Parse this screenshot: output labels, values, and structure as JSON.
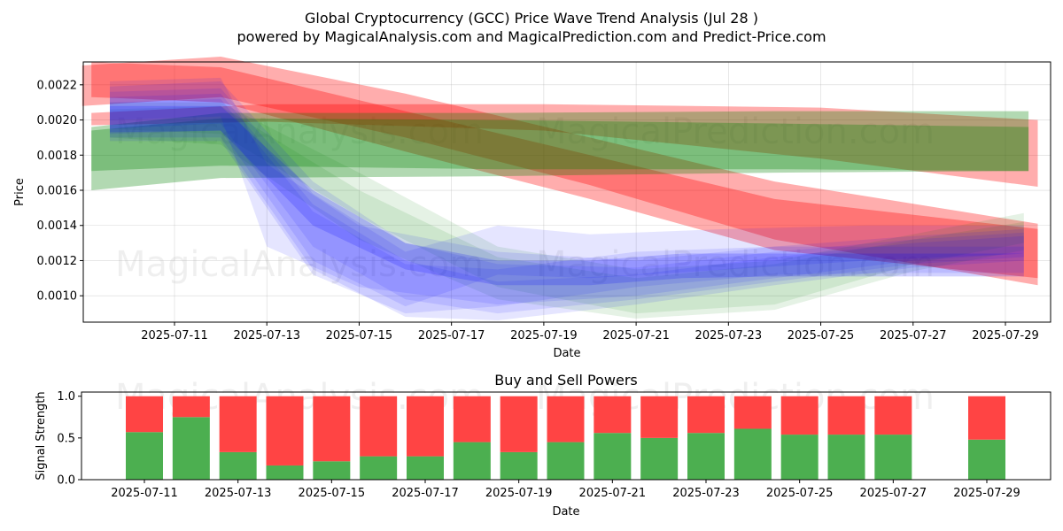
{
  "title": "Global Cryptocurrency (GCC) Price Wave Trend Analysis (Jul 28 )",
  "subtitle": "powered by MagicalAnalysis.com and MagicalPrediction.com and Predict-Price.com",
  "watermarks": [
    "MagicalAnalysis.com",
    "MagicalPrediction.com"
  ],
  "colors": {
    "red": "#ff0000",
    "green": "#008000",
    "blue": "#0000ff",
    "buy": "#4caf50",
    "sell": "#ff4444",
    "grid": "#b0b0b0"
  },
  "chart_data": [
    {
      "type": "area",
      "title": "",
      "xlabel": "Date",
      "ylabel": "Price",
      "x_range": [
        "2025-07-09",
        "2025-07-30"
      ],
      "ylim": [
        0.00085,
        0.00233
      ],
      "x_ticks": [
        "2025-07-11",
        "2025-07-13",
        "2025-07-15",
        "2025-07-17",
        "2025-07-19",
        "2025-07-21",
        "2025-07-23",
        "2025-07-25",
        "2025-07-27",
        "2025-07-29"
      ],
      "y_ticks": [
        0.001,
        0.0012,
        0.0014,
        0.0016,
        0.0018,
        0.002,
        0.0022
      ],
      "y_tick_labels": [
        "0.0010",
        "0.0012",
        "0.0014",
        "0.0016",
        "0.0018",
        "0.0020",
        "0.0022"
      ],
      "grid": true,
      "bands": [
        {
          "color": "red",
          "opacity": 0.32,
          "x": [
            "2025-07-09",
            "2025-07-12",
            "2025-07-16",
            "2025-07-20",
            "2025-07-24",
            "2025-07-29.7"
          ],
          "upper": [
            0.00231,
            0.00236,
            0.00215,
            0.0019,
            0.00165,
            0.00141
          ],
          "lower": [
            0.00208,
            0.00213,
            0.0019,
            0.00163,
            0.00132,
            0.00106
          ]
        },
        {
          "color": "red",
          "opacity": 0.32,
          "x": [
            "2025-07-09.2",
            "2025-07-13",
            "2025-07-19",
            "2025-07-25",
            "2025-07-29.7"
          ],
          "upper": [
            0.00204,
            0.00209,
            0.00209,
            0.00207,
            0.002
          ],
          "lower": [
            0.00197,
            0.00199,
            0.00194,
            0.00178,
            0.00162
          ]
        },
        {
          "color": "red",
          "opacity": 0.32,
          "x": [
            "2025-07-09.2",
            "2025-07-12",
            "2025-07-16",
            "2025-07-20",
            "2025-07-24",
            "2025-07-29.7"
          ],
          "upper": [
            0.00233,
            0.0023,
            0.00205,
            0.0018,
            0.00155,
            0.00138
          ],
          "lower": [
            0.00213,
            0.0021,
            0.00182,
            0.00155,
            0.00126,
            0.0011
          ]
        },
        {
          "color": "green",
          "opacity": 0.3,
          "x": [
            "2025-07-09.2",
            "2025-07-12",
            "2025-07-18",
            "2025-07-24",
            "2025-07-29.5"
          ],
          "upper": [
            0.00196,
            0.00204,
            0.00204,
            0.00205,
            0.00205
          ],
          "lower": [
            0.0016,
            0.00167,
            0.00168,
            0.0017,
            0.00171
          ]
        },
        {
          "color": "green",
          "opacity": 0.3,
          "x": [
            "2025-07-09.2",
            "2025-07-12",
            "2025-07-18",
            "2025-07-24",
            "2025-07-29.5"
          ],
          "upper": [
            0.00194,
            0.00201,
            0.002,
            0.00198,
            0.00196
          ],
          "lower": [
            0.00171,
            0.00174,
            0.00172,
            0.00172,
            0.00171
          ]
        },
        {
          "color": "green",
          "opacity": 0.1,
          "x": [
            "2025-07-09.6",
            "2025-07-12",
            "2025-07-15",
            "2025-07-18",
            "2025-07-21",
            "2025-07-24",
            "2025-07-27",
            "2025-07-29.4"
          ],
          "upper": [
            0.0021,
            0.0021,
            0.0017,
            0.00128,
            0.00115,
            0.0012,
            0.00135,
            0.00147
          ],
          "lower": [
            0.00195,
            0.00192,
            0.00145,
            0.00105,
            0.0009,
            0.00095,
            0.00118,
            0.0013
          ]
        },
        {
          "color": "green",
          "opacity": 0.1,
          "x": [
            "2025-07-09.6",
            "2025-07-12",
            "2025-07-15",
            "2025-07-18",
            "2025-07-21",
            "2025-07-24",
            "2025-07-27",
            "2025-07-29.4"
          ],
          "upper": [
            0.00206,
            0.00208,
            0.0016,
            0.00122,
            0.0011,
            0.00118,
            0.00132,
            0.00142
          ],
          "lower": [
            0.0019,
            0.00186,
            0.00132,
            0.00098,
            0.00087,
            0.00092,
            0.00114,
            0.00126
          ]
        },
        {
          "color": "blue",
          "opacity": 0.1,
          "x": [
            "2025-07-09.6",
            "2025-07-12",
            "2025-07-13",
            "2025-07-15",
            "2025-07-18",
            "2025-07-21",
            "2025-07-24",
            "2025-07-27",
            "2025-07-29.4"
          ],
          "upper": [
            0.00222,
            0.00224,
            0.00175,
            0.0014,
            0.00125,
            0.0012,
            0.00128,
            0.00134,
            0.00138
          ],
          "lower": [
            0.002,
            0.00202,
            0.00128,
            0.00105,
            0.00095,
            0.001,
            0.0011,
            0.0012,
            0.00124
          ]
        },
        {
          "color": "blue",
          "opacity": 0.1,
          "x": [
            "2025-07-09.6",
            "2025-07-12",
            "2025-07-14",
            "2025-07-16",
            "2025-07-18",
            "2025-07-21",
            "2025-07-24",
            "2025-07-27",
            "2025-07-29.4"
          ],
          "upper": [
            0.00219,
            0.00222,
            0.00165,
            0.0013,
            0.00118,
            0.00116,
            0.00125,
            0.00132,
            0.00136
          ],
          "lower": [
            0.00195,
            0.00198,
            0.00128,
            0.00098,
            0.0009,
            0.00098,
            0.00108,
            0.00118,
            0.00122
          ]
        },
        {
          "color": "blue",
          "opacity": 0.1,
          "x": [
            "2025-07-09.6",
            "2025-07-12",
            "2025-07-14",
            "2025-07-16",
            "2025-07-18",
            "2025-07-20",
            "2025-07-23",
            "2025-07-26",
            "2025-07-29.4"
          ],
          "upper": [
            0.00216,
            0.00218,
            0.00158,
            0.00125,
            0.0014,
            0.00135,
            0.00138,
            0.0014,
            0.0014
          ],
          "lower": [
            0.00192,
            0.00194,
            0.0012,
            0.00094,
            0.00112,
            0.0011,
            0.00115,
            0.0012,
            0.00124
          ]
        },
        {
          "color": "blue",
          "opacity": 0.1,
          "x": [
            "2025-07-09.6",
            "2025-07-12",
            "2025-07-14",
            "2025-07-16",
            "2025-07-18",
            "2025-07-21",
            "2025-07-24",
            "2025-07-27",
            "2025-07-29.4"
          ],
          "upper": [
            0.00213,
            0.00215,
            0.00152,
            0.0012,
            0.00108,
            0.00112,
            0.00122,
            0.0013,
            0.00134
          ],
          "lower": [
            0.0019,
            0.0019,
            0.00115,
            0.00088,
            0.00086,
            0.00095,
            0.00106,
            0.00116,
            0.0012
          ]
        },
        {
          "color": "blue",
          "opacity": 0.1,
          "x": [
            "2025-07-09.6",
            "2025-07-12",
            "2025-07-14",
            "2025-07-16",
            "2025-07-18",
            "2025-07-21",
            "2025-07-24",
            "2025-07-27",
            "2025-07-29.4"
          ],
          "upper": [
            0.0021,
            0.00212,
            0.00148,
            0.00118,
            0.00115,
            0.00125,
            0.00128,
            0.00128,
            0.00128
          ],
          "lower": [
            0.00188,
            0.00188,
            0.00112,
            0.0009,
            0.00094,
            0.00105,
            0.00112,
            0.00113,
            0.00113
          ]
        },
        {
          "color": "blue",
          "opacity": 0.18,
          "x": [
            "2025-07-09.6",
            "2025-07-12",
            "2025-07-14",
            "2025-07-16",
            "2025-07-18",
            "2025-07-20",
            "2025-07-22",
            "2025-07-24",
            "2025-07-26",
            "2025-07-29.4"
          ],
          "upper": [
            0.00208,
            0.00208,
            0.0016,
            0.0013,
            0.0012,
            0.0012,
            0.00124,
            0.00124,
            0.00124,
            0.00124
          ],
          "lower": [
            0.00193,
            0.00194,
            0.0014,
            0.00115,
            0.00106,
            0.00106,
            0.0011,
            0.00111,
            0.00111,
            0.00111
          ]
        }
      ]
    },
    {
      "type": "bar",
      "title": "Buy and Sell Powers",
      "xlabel": "Date",
      "ylabel": "Signal Strength",
      "ylim": [
        0,
        1.05
      ],
      "y_ticks": [
        0.0,
        0.5,
        1.0
      ],
      "y_tick_labels": [
        "0.0",
        "0.5",
        "1.0"
      ],
      "x_ticks": [
        "2025-07-11",
        "2025-07-13",
        "2025-07-15",
        "2025-07-17",
        "2025-07-19",
        "2025-07-21",
        "2025-07-23",
        "2025-07-25",
        "2025-07-27",
        "2025-07-29"
      ],
      "x_range": [
        "2025-07-09.5",
        "2025-07-30"
      ],
      "categories": [
        "2025-07-11",
        "2025-07-12",
        "2025-07-13",
        "2025-07-14",
        "2025-07-15",
        "2025-07-16",
        "2025-07-17",
        "2025-07-18",
        "2025-07-19",
        "2025-07-20",
        "2025-07-21",
        "2025-07-22",
        "2025-07-23",
        "2025-07-24",
        "2025-07-25",
        "2025-07-26",
        "2025-07-27",
        "2025-07-29"
      ],
      "series": [
        {
          "name": "Buy",
          "color": "buy",
          "values": [
            0.57,
            0.75,
            0.33,
            0.17,
            0.22,
            0.28,
            0.28,
            0.45,
            0.33,
            0.45,
            0.56,
            0.5,
            0.56,
            0.61,
            0.54,
            0.54,
            0.54,
            0.48
          ]
        },
        {
          "name": "Sell",
          "color": "sell",
          "values": [
            0.43,
            0.25,
            0.67,
            0.83,
            0.78,
            0.72,
            0.72,
            0.55,
            0.67,
            0.55,
            0.44,
            0.5,
            0.44,
            0.39,
            0.46,
            0.46,
            0.46,
            0.52
          ]
        }
      ]
    }
  ]
}
